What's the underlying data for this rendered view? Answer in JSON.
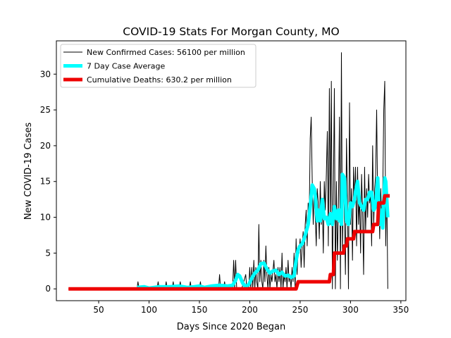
{
  "chart_data": {
    "type": "line",
    "title": "COVID-19 Stats For Morgan County, MO",
    "xlabel": "Days Since 2020 Began",
    "ylabel": "New COVID-19 Cases",
    "xlim": [
      8,
      355
    ],
    "ylim": [
      -1.65,
      34.65
    ],
    "xticks": [
      50,
      100,
      150,
      200,
      250,
      300,
      350
    ],
    "yticks": [
      0,
      5,
      10,
      15,
      20,
      25,
      30
    ],
    "legend_position": "upper-left",
    "grid": false,
    "series": [
      {
        "name": "New Confirmed Cases: 56100 per million",
        "color": "#000000",
        "points": [
          [
            20,
            0
          ],
          [
            88,
            0
          ],
          [
            89,
            1
          ],
          [
            90,
            0
          ],
          [
            108,
            0
          ],
          [
            109,
            1
          ],
          [
            110,
            0
          ],
          [
            116,
            0
          ],
          [
            117,
            1
          ],
          [
            118,
            0
          ],
          [
            123,
            0
          ],
          [
            124,
            1
          ],
          [
            125,
            0
          ],
          [
            130,
            0
          ],
          [
            131,
            1
          ],
          [
            132,
            0
          ],
          [
            140,
            0
          ],
          [
            141,
            1
          ],
          [
            142,
            0
          ],
          [
            150,
            0
          ],
          [
            151,
            1
          ],
          [
            152,
            0
          ],
          [
            169,
            0
          ],
          [
            170,
            2
          ],
          [
            171,
            0
          ],
          [
            174,
            0
          ],
          [
            175,
            1
          ],
          [
            176,
            0
          ],
          [
            183,
            0
          ],
          [
            184,
            4
          ],
          [
            185,
            0
          ],
          [
            186,
            4
          ],
          [
            187,
            0
          ],
          [
            192,
            0
          ],
          [
            194,
            1
          ],
          [
            196,
            2
          ],
          [
            197,
            0
          ],
          [
            199,
            0
          ],
          [
            200,
            3
          ],
          [
            201,
            0
          ],
          [
            202,
            3
          ],
          [
            203,
            0
          ],
          [
            204,
            4
          ],
          [
            205,
            0
          ],
          [
            206,
            3
          ],
          [
            207,
            1
          ],
          [
            208,
            0
          ],
          [
            209,
            9
          ],
          [
            210,
            1
          ],
          [
            211,
            4
          ],
          [
            212,
            1
          ],
          [
            213,
            0
          ],
          [
            214,
            4
          ],
          [
            215,
            1
          ],
          [
            216,
            6
          ],
          [
            217,
            2
          ],
          [
            218,
            0
          ],
          [
            219,
            3
          ],
          [
            220,
            0
          ],
          [
            221,
            2
          ],
          [
            222,
            1
          ],
          [
            224,
            4
          ],
          [
            225,
            1
          ],
          [
            226,
            2
          ],
          [
            227,
            0
          ],
          [
            228,
            3
          ],
          [
            229,
            1
          ],
          [
            230,
            3
          ],
          [
            231,
            0
          ],
          [
            232,
            5
          ],
          [
            233,
            0
          ],
          [
            234,
            2
          ],
          [
            235,
            1
          ],
          [
            236,
            3
          ],
          [
            237,
            0
          ],
          [
            238,
            4
          ],
          [
            239,
            1
          ],
          [
            240,
            2
          ],
          [
            241,
            0
          ],
          [
            242,
            3
          ],
          [
            243,
            1
          ],
          [
            244,
            5
          ],
          [
            245,
            0
          ],
          [
            246,
            7
          ],
          [
            247,
            2
          ],
          [
            248,
            6
          ],
          [
            249,
            5
          ],
          [
            250,
            7
          ],
          [
            251,
            3
          ],
          [
            252,
            6
          ],
          [
            253,
            8
          ],
          [
            254,
            3
          ],
          [
            255,
            9
          ],
          [
            256,
            11
          ],
          [
            257,
            6
          ],
          [
            258,
            12
          ],
          [
            259,
            10
          ],
          [
            260,
            21
          ],
          [
            261,
            24
          ],
          [
            262,
            15
          ],
          [
            263,
            9
          ],
          [
            264,
            14
          ],
          [
            265,
            10
          ],
          [
            266,
            6
          ],
          [
            267,
            14
          ],
          [
            268,
            12
          ],
          [
            269,
            7
          ],
          [
            270,
            15
          ],
          [
            271,
            9
          ],
          [
            272,
            12
          ],
          [
            273,
            5
          ],
          [
            274,
            15
          ],
          [
            275,
            11
          ],
          [
            276,
            16
          ],
          [
            277,
            22
          ],
          [
            278,
            6
          ],
          [
            279,
            28
          ],
          [
            280,
            9
          ],
          [
            281,
            29
          ],
          [
            282,
            0
          ],
          [
            283,
            14
          ],
          [
            284,
            28
          ],
          [
            285,
            0
          ],
          [
            286,
            15
          ],
          [
            287,
            4
          ],
          [
            288,
            11
          ],
          [
            289,
            24
          ],
          [
            290,
            0
          ],
          [
            291,
            33
          ],
          [
            292,
            5
          ],
          [
            293,
            16
          ],
          [
            294,
            10
          ],
          [
            295,
            2
          ],
          [
            296,
            21
          ],
          [
            297,
            12
          ],
          [
            298,
            0
          ],
          [
            299,
            26
          ],
          [
            300,
            9
          ],
          [
            301,
            14
          ],
          [
            302,
            4
          ],
          [
            303,
            17
          ],
          [
            304,
            12
          ],
          [
            305,
            17
          ],
          [
            306,
            6
          ],
          [
            307,
            17
          ],
          [
            308,
            9
          ],
          [
            309,
            13
          ],
          [
            310,
            5
          ],
          [
            311,
            16
          ],
          [
            312,
            11
          ],
          [
            313,
            2
          ],
          [
            314,
            17
          ],
          [
            315,
            8
          ],
          [
            316,
            14
          ],
          [
            317,
            10
          ],
          [
            318,
            16
          ],
          [
            319,
            12
          ],
          [
            320,
            13
          ],
          [
            321,
            6
          ],
          [
            322,
            20
          ],
          [
            323,
            9
          ],
          [
            324,
            14
          ],
          [
            325,
            16
          ],
          [
            326,
            25
          ],
          [
            327,
            12
          ],
          [
            328,
            15
          ],
          [
            329,
            7
          ],
          [
            330,
            14
          ],
          [
            331,
            9
          ],
          [
            332,
            13
          ],
          [
            333,
            25
          ],
          [
            334,
            29
          ],
          [
            335,
            6
          ],
          [
            336,
            15
          ],
          [
            337,
            0
          ]
        ]
      },
      {
        "name": "7 Day Case Average",
        "color": "#00ffff",
        "points": [
          [
            88,
            0.2
          ],
          [
            95,
            0.3
          ],
          [
            100,
            0.1
          ],
          [
            110,
            0.3
          ],
          [
            120,
            0.3
          ],
          [
            130,
            0.4
          ],
          [
            138,
            0.2
          ],
          [
            145,
            0.3
          ],
          [
            150,
            0.4
          ],
          [
            155,
            0.2
          ],
          [
            162,
            0.4
          ],
          [
            170,
            0.5
          ],
          [
            178,
            0.4
          ],
          [
            183,
            0.5
          ],
          [
            186,
            1.2
          ],
          [
            188,
            2
          ],
          [
            190,
            1.8
          ],
          [
            193,
            0.8
          ],
          [
            196,
            0.3
          ],
          [
            199,
            0.6
          ],
          [
            202,
            1.5
          ],
          [
            205,
            2.2
          ],
          [
            208,
            2.6
          ],
          [
            211,
            3.5
          ],
          [
            214,
            3.6
          ],
          [
            217,
            2.8
          ],
          [
            220,
            2.2
          ],
          [
            223,
            2.5
          ],
          [
            226,
            2.6
          ],
          [
            229,
            2
          ],
          [
            232,
            2.3
          ],
          [
            235,
            1.8
          ],
          [
            238,
            1.9
          ],
          [
            241,
            1.6
          ],
          [
            244,
            1.8
          ],
          [
            246,
            4
          ],
          [
            248,
            5.5
          ],
          [
            250,
            6
          ],
          [
            252,
            6.3
          ],
          [
            254,
            7
          ],
          [
            256,
            8
          ],
          [
            258,
            9
          ],
          [
            260,
            11.5
          ],
          [
            262,
            14.5
          ],
          [
            264,
            14
          ],
          [
            265,
            13
          ],
          [
            267,
            9.5
          ],
          [
            268,
            11
          ],
          [
            270,
            9.5
          ],
          [
            271,
            11
          ],
          [
            272,
            12.5
          ],
          [
            274,
            9.8
          ],
          [
            276,
            10
          ],
          [
            278,
            9
          ],
          [
            280,
            10.5
          ],
          [
            282,
            9
          ],
          [
            284,
            11.5
          ],
          [
            286,
            9.8
          ],
          [
            288,
            11
          ],
          [
            289,
            9.5
          ],
          [
            290,
            11
          ],
          [
            291,
            9
          ],
          [
            292,
            16
          ],
          [
            294,
            15.5
          ],
          [
            296,
            9.5
          ],
          [
            298,
            9
          ],
          [
            300,
            12
          ],
          [
            302,
            11.5
          ],
          [
            304,
            12.5
          ],
          [
            305,
            13.5
          ],
          [
            307,
            15
          ],
          [
            309,
            12
          ],
          [
            311,
            11.5
          ],
          [
            313,
            11
          ],
          [
            315,
            12.5
          ],
          [
            317,
            12.5
          ],
          [
            319,
            13.5
          ],
          [
            321,
            13.5
          ],
          [
            323,
            11
          ],
          [
            325,
            11.5
          ],
          [
            327,
            15.5
          ],
          [
            329,
            9
          ],
          [
            331,
            11
          ],
          [
            332,
            8.5
          ],
          [
            334,
            15.5
          ],
          [
            335,
            15
          ],
          [
            337,
            10
          ]
        ]
      },
      {
        "name": "Cumulative Deaths: 630.2 per million",
        "color": "#ee0000",
        "points": [
          [
            20,
            0
          ],
          [
            246,
            0
          ],
          [
            248,
            1
          ],
          [
            279,
            1
          ],
          [
            280,
            2
          ],
          [
            283,
            2
          ],
          [
            284,
            5
          ],
          [
            293,
            5
          ],
          [
            294,
            6
          ],
          [
            296,
            6
          ],
          [
            297,
            7
          ],
          [
            303,
            7
          ],
          [
            304,
            8
          ],
          [
            322,
            8
          ],
          [
            323,
            9
          ],
          [
            327,
            9
          ],
          [
            328,
            12
          ],
          [
            333,
            12
          ],
          [
            334,
            13
          ],
          [
            339,
            13
          ]
        ]
      }
    ]
  }
}
